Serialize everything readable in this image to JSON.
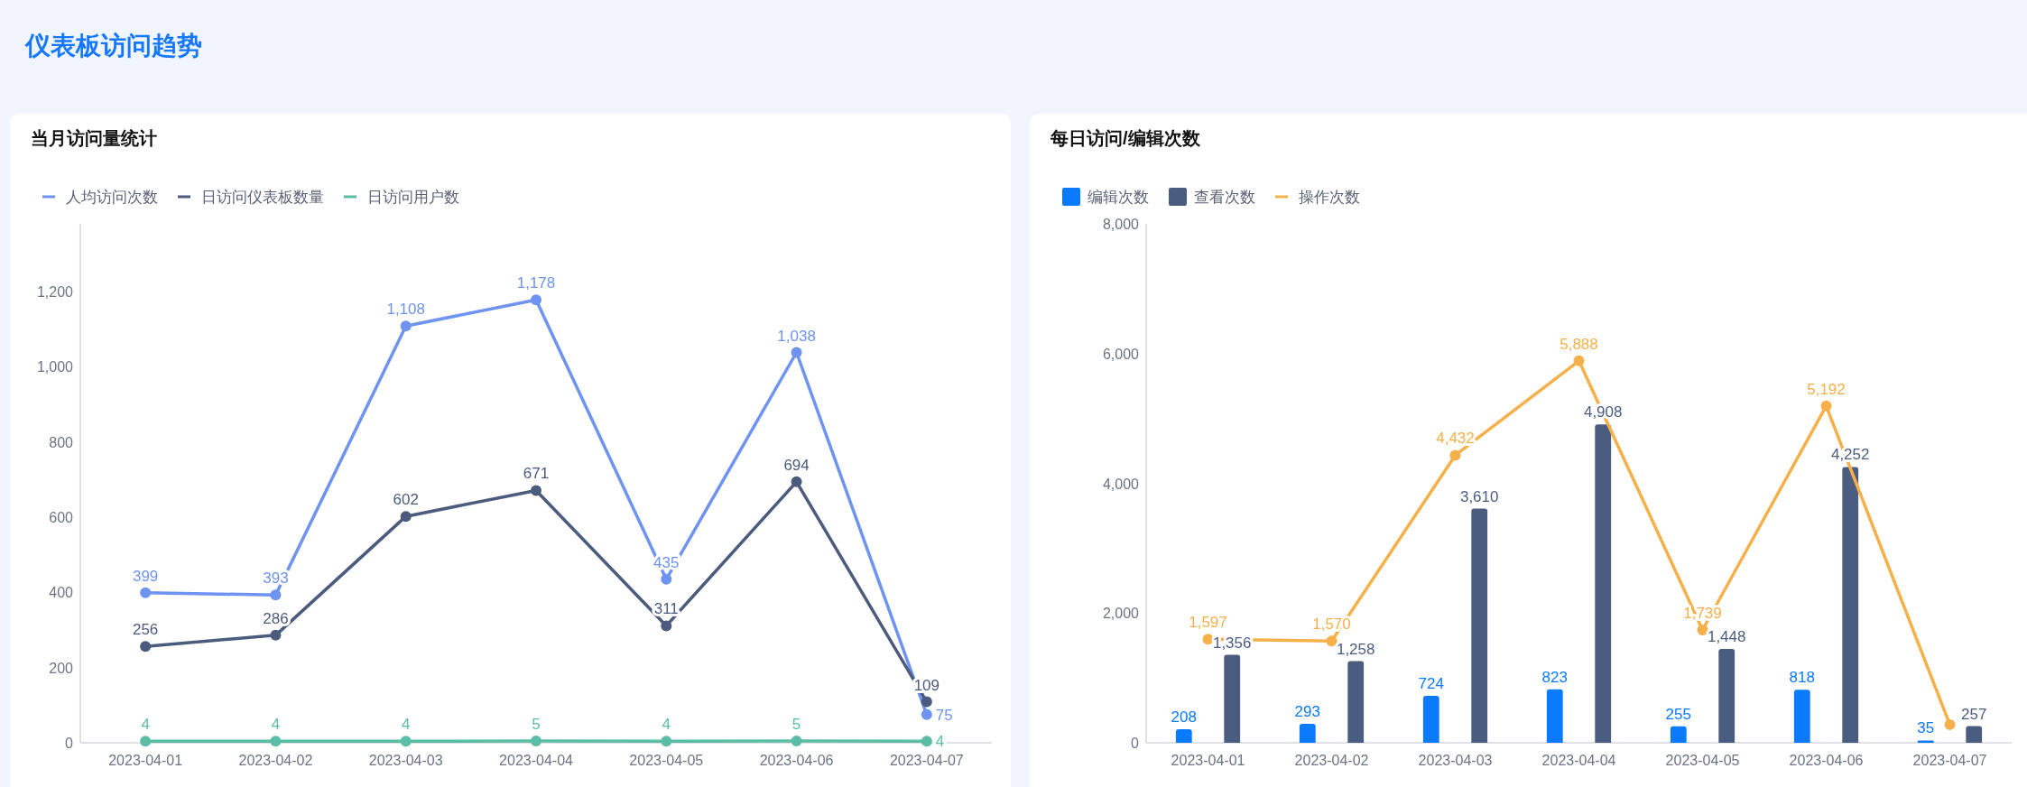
{
  "chart_data": [
    {
      "type": "line",
      "title": "当月访问量统计",
      "annotations": [
        "仪表板访问趋势"
      ],
      "categories": [
        "2023-04-01",
        "2023-04-02",
        "2023-04-03",
        "2023-04-04",
        "2023-04-05",
        "2023-04-06",
        "2023-04-07"
      ],
      "series": [
        {
          "name": "人均访问次数",
          "color": "#6e93f0",
          "values": [
            399,
            393,
            1108,
            1178,
            435,
            1038,
            75
          ],
          "value_labels": [
            "399",
            "393",
            "1,108",
            "1,178",
            "435",
            "1,038",
            "75"
          ]
        },
        {
          "name": "日访问仪表板数量",
          "color": "#4b5b7d",
          "values": [
            256,
            286,
            602,
            671,
            311,
            694,
            109
          ],
          "value_labels": [
            "256",
            "286",
            "602",
            "671",
            "311",
            "694",
            "109"
          ]
        },
        {
          "name": "日访问用户数",
          "color": "#5bbda6",
          "values": [
            4,
            4,
            4,
            5,
            4,
            5,
            4
          ],
          "value_labels": [
            "4",
            "4",
            "4",
            "5",
            "4",
            "5",
            "4"
          ]
        }
      ],
      "ylim": [
        0,
        1380
      ],
      "yticks": [
        0,
        200,
        400,
        600,
        800,
        {
          "value": 1000,
          "label": "1,000"
        },
        {
          "value": 1200,
          "label": "1,200"
        }
      ],
      "legend": "top left",
      "marker": "circle"
    },
    {
      "type": "bar",
      "title": "每日访问/编辑次数",
      "categories": [
        "2023-04-01",
        "2023-04-02",
        "2023-04-03",
        "2023-04-04",
        "2023-04-05",
        "2023-04-06",
        "2023-04-07"
      ],
      "series": [
        {
          "name": "编辑次数",
          "color": "#0a7aff",
          "values": [
            208,
            293,
            724,
            823,
            255,
            818,
            35
          ],
          "value_labels": [
            "208",
            "293",
            "724",
            "823",
            "255",
            "818",
            "35"
          ]
        },
        {
          "name": "查看次数",
          "color": "#4a5c80",
          "values": [
            1356,
            1258,
            3610,
            4908,
            1448,
            4252,
            257
          ],
          "value_labels": [
            "1,356",
            "1,258",
            "3,610",
            "4,908",
            "1,448",
            "4,252",
            "257"
          ]
        },
        {
          "name": "操作次数",
          "type": "line",
          "color": "#f5b04a",
          "values": [
            1597,
            1570,
            4432,
            5888,
            1739,
            5192,
            280
          ],
          "value_labels": [
            "1,597",
            "1,570",
            "4,432",
            "5,888",
            "1,739",
            "5,192",
            null
          ]
        }
      ],
      "ylim": [
        0,
        8000
      ],
      "yticks": [
        0,
        {
          "value": 2000,
          "label": "2,000"
        },
        {
          "value": 4000,
          "label": "4,000"
        },
        {
          "value": 6000,
          "label": "6,000"
        },
        {
          "value": 8000,
          "label": "8,000"
        }
      ],
      "legend": "top left",
      "marker": "circle"
    }
  ]
}
